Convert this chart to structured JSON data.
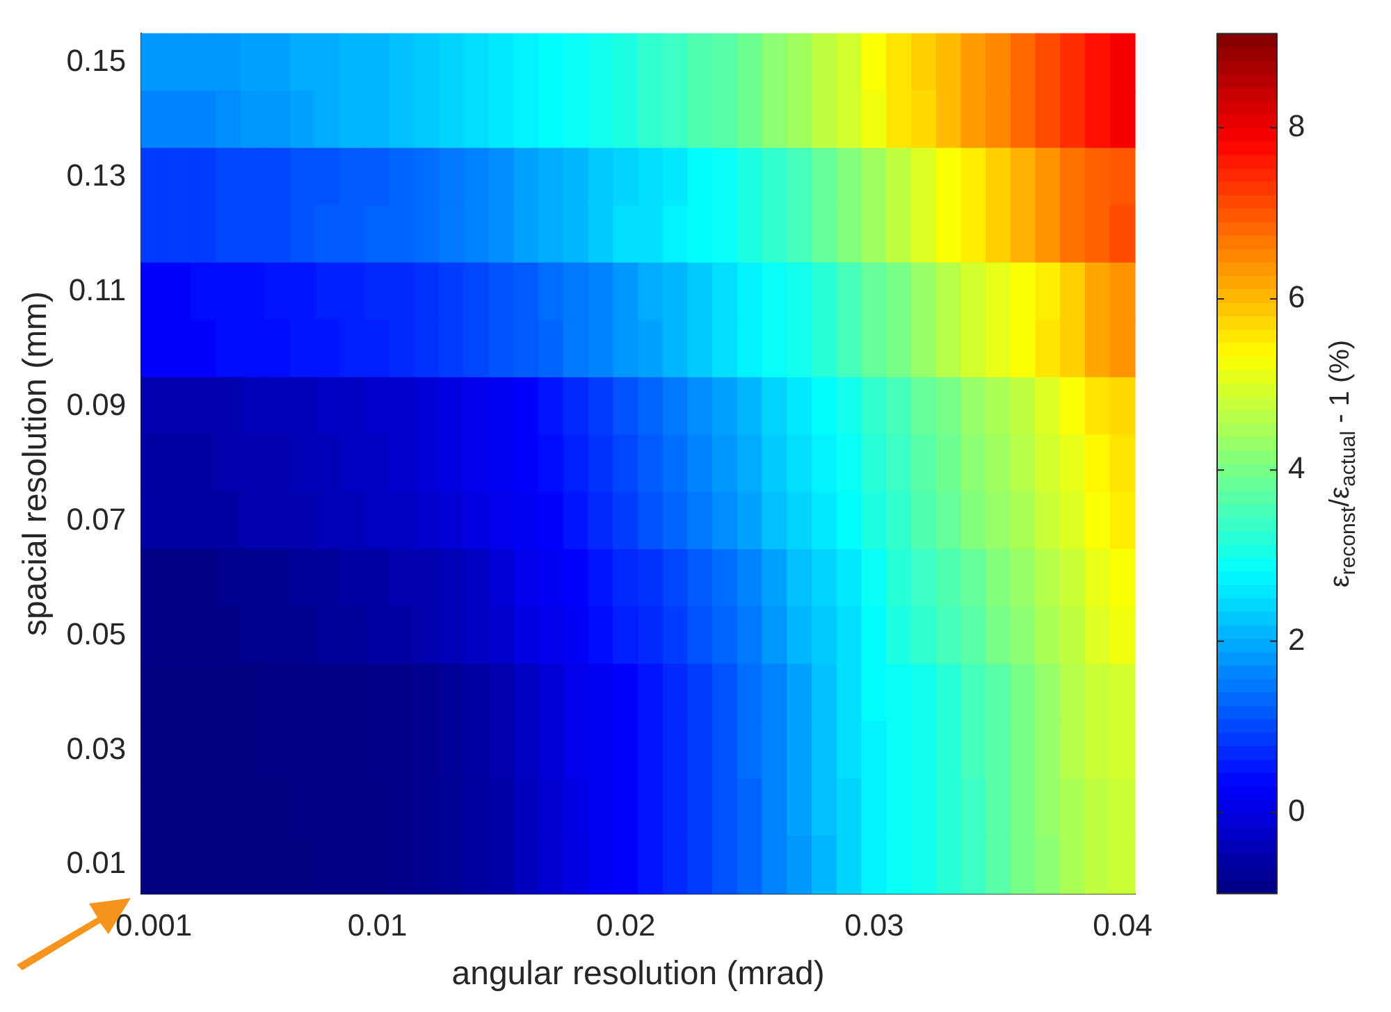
{
  "chart_data": {
    "type": "heatmap",
    "xlabel": "angular resolution (mrad)",
    "ylabel": "spacial resolution (mm)",
    "clabel": "ε$_{reconst}$/ε$_{actual}$ - 1 (%)",
    "categories": [
      "0.001",
      null,
      null,
      null,
      null,
      null,
      null,
      null,
      null,
      "0.01",
      null,
      null,
      null,
      null,
      null,
      null,
      null,
      null,
      null,
      "0.02",
      null,
      null,
      null,
      null,
      null,
      null,
      null,
      null,
      null,
      "0.03",
      null,
      null,
      null,
      null,
      null,
      null,
      null,
      null,
      null,
      "0.04"
    ],
    "y_categories": [
      "0.15",
      null,
      "0.13",
      null,
      "0.11",
      null,
      "0.09",
      null,
      "0.07",
      null,
      "0.05",
      null,
      "0.03",
      null,
      "0.01"
    ],
    "clim": [
      -0.95,
      9.1
    ],
    "cticks": [
      0,
      2,
      4,
      6,
      8
    ],
    "cells": [
      [
        1.8,
        1.8,
        1.8,
        1.8,
        1.9,
        1.9,
        2.0,
        2.0,
        2.1,
        2.1,
        2.2,
        2.3,
        2.4,
        2.5,
        2.6,
        2.7,
        2.8,
        2.9,
        3.0,
        3.1,
        3.3,
        3.4,
        3.6,
        3.7,
        3.9,
        4.2,
        4.4,
        4.7,
        4.9,
        5.3,
        5.6,
        5.8,
        6.0,
        6.3,
        6.5,
        6.8,
        7.1,
        7.4,
        7.7,
        7.9
      ],
      [
        1.6,
        1.6,
        1.6,
        1.7,
        1.8,
        1.8,
        1.9,
        2.0,
        2.1,
        2.1,
        2.2,
        2.3,
        2.4,
        2.5,
        2.6,
        2.7,
        2.8,
        2.9,
        3.0,
        3.1,
        3.3,
        3.4,
        3.6,
        3.7,
        3.9,
        4.2,
        4.4,
        4.7,
        4.9,
        5.2,
        5.6,
        5.7,
        6.0,
        6.3,
        6.5,
        6.8,
        7.1,
        7.4,
        7.7,
        7.9
      ],
      [
        0.9,
        0.9,
        0.9,
        1.0,
        1.0,
        1.0,
        1.1,
        1.1,
        1.2,
        1.2,
        1.3,
        1.4,
        1.5,
        1.6,
        1.7,
        1.9,
        2.0,
        2.1,
        2.3,
        2.4,
        2.5,
        2.6,
        2.8,
        2.9,
        3.1,
        3.3,
        3.5,
        3.8,
        4.1,
        4.4,
        4.7,
        5.0,
        5.3,
        5.5,
        5.8,
        6.1,
        6.4,
        6.7,
        6.9,
        7.0
      ],
      [
        0.9,
        0.9,
        0.9,
        1.0,
        1.0,
        1.0,
        1.1,
        1.2,
        1.2,
        1.3,
        1.3,
        1.4,
        1.5,
        1.6,
        1.7,
        1.9,
        2.0,
        2.1,
        2.3,
        2.5,
        2.5,
        2.7,
        2.8,
        2.9,
        3.1,
        3.3,
        3.5,
        3.8,
        4.1,
        4.4,
        4.7,
        5.0,
        5.3,
        5.5,
        5.8,
        6.1,
        6.4,
        6.7,
        6.9,
        7.1
      ],
      [
        0.3,
        0.3,
        0.4,
        0.4,
        0.4,
        0.5,
        0.5,
        0.6,
        0.6,
        0.7,
        0.7,
        0.8,
        0.9,
        1.0,
        1.1,
        1.2,
        1.4,
        1.5,
        1.6,
        1.8,
        2.0,
        2.1,
        2.3,
        2.5,
        2.7,
        2.9,
        3.0,
        3.2,
        3.5,
        3.8,
        4.0,
        4.3,
        4.6,
        4.9,
        5.1,
        5.3,
        5.5,
        5.8,
        6.2,
        6.4
      ],
      [
        0.3,
        0.3,
        0.3,
        0.4,
        0.4,
        0.4,
        0.5,
        0.5,
        0.6,
        0.6,
        0.7,
        0.8,
        0.9,
        1.0,
        1.1,
        1.2,
        1.3,
        1.5,
        1.6,
        1.8,
        1.9,
        2.1,
        2.3,
        2.5,
        2.7,
        2.9,
        3.0,
        3.2,
        3.5,
        3.8,
        4.0,
        4.3,
        4.6,
        4.9,
        5.1,
        5.3,
        5.6,
        5.8,
        6.2,
        6.4
      ],
      [
        -0.5,
        -0.5,
        -0.5,
        -0.5,
        -0.4,
        -0.4,
        -0.4,
        -0.3,
        -0.3,
        -0.2,
        -0.2,
        -0.1,
        0.0,
        0.1,
        0.2,
        0.3,
        0.5,
        0.7,
        0.9,
        1.1,
        1.3,
        1.5,
        1.7,
        1.9,
        2.1,
        2.4,
        2.6,
        2.8,
        3.0,
        3.3,
        3.5,
        3.8,
        4.0,
        4.3,
        4.5,
        4.7,
        5.0,
        5.3,
        5.6,
        5.7
      ],
      [
        -0.6,
        -0.6,
        -0.6,
        -0.5,
        -0.5,
        -0.5,
        -0.4,
        -0.4,
        -0.3,
        -0.3,
        -0.2,
        -0.1,
        0.0,
        0.1,
        0.2,
        0.3,
        0.4,
        0.6,
        0.8,
        1.0,
        1.2,
        1.4,
        1.6,
        1.8,
        2.0,
        2.3,
        2.5,
        2.7,
        2.9,
        3.2,
        3.4,
        3.7,
        3.9,
        4.2,
        4.4,
        4.6,
        4.9,
        5.1,
        5.4,
        5.6
      ],
      [
        -0.6,
        -0.6,
        -0.6,
        -0.6,
        -0.5,
        -0.5,
        -0.5,
        -0.4,
        -0.4,
        -0.3,
        -0.3,
        -0.2,
        -0.1,
        0.0,
        0.1,
        0.2,
        0.3,
        0.5,
        0.7,
        0.9,
        1.1,
        1.3,
        1.5,
        1.7,
        1.9,
        2.2,
        2.4,
        2.6,
        2.8,
        3.1,
        3.3,
        3.6,
        3.8,
        4.1,
        4.3,
        4.5,
        4.8,
        5.0,
        5.3,
        5.5
      ],
      [
        -0.9,
        -0.9,
        -0.9,
        -0.8,
        -0.8,
        -0.8,
        -0.7,
        -0.7,
        -0.6,
        -0.6,
        -0.5,
        -0.5,
        -0.4,
        -0.3,
        -0.1,
        0.1,
        0.2,
        0.3,
        0.5,
        0.7,
        0.8,
        1.0,
        1.2,
        1.4,
        1.6,
        1.9,
        2.2,
        2.4,
        2.6,
        2.9,
        3.2,
        3.4,
        3.6,
        3.8,
        4.1,
        4.3,
        4.6,
        4.8,
        5.1,
        5.3
      ],
      [
        -0.9,
        -0.9,
        -0.9,
        -0.9,
        -0.8,
        -0.8,
        -0.8,
        -0.7,
        -0.7,
        -0.6,
        -0.6,
        -0.5,
        -0.4,
        -0.3,
        -0.2,
        0.0,
        0.1,
        0.2,
        0.4,
        0.6,
        0.7,
        0.9,
        1.1,
        1.3,
        1.5,
        1.8,
        2.1,
        2.3,
        2.5,
        2.8,
        3.1,
        3.3,
        3.5,
        3.7,
        4.0,
        4.2,
        4.5,
        4.7,
        5.0,
        5.2
      ],
      [
        -0.95,
        -0.95,
        -0.95,
        -0.95,
        -0.95,
        -0.9,
        -0.9,
        -0.9,
        -0.9,
        -0.85,
        -0.85,
        -0.8,
        -0.7,
        -0.6,
        -0.5,
        -0.3,
        -0.1,
        0.1,
        0.2,
        0.3,
        0.5,
        0.7,
        0.9,
        1.1,
        1.4,
        1.6,
        1.9,
        2.2,
        2.5,
        2.8,
        2.9,
        3.0,
        3.2,
        3.5,
        3.7,
        4.0,
        4.3,
        4.6,
        4.8,
        4.9
      ],
      [
        -0.95,
        -0.95,
        -0.95,
        -0.95,
        -0.95,
        -0.9,
        -0.9,
        -0.9,
        -0.9,
        -0.85,
        -0.85,
        -0.8,
        -0.7,
        -0.6,
        -0.5,
        -0.3,
        -0.1,
        0.1,
        0.2,
        0.3,
        0.5,
        0.7,
        0.9,
        1.1,
        1.4,
        1.6,
        1.9,
        2.2,
        2.5,
        2.7,
        2.9,
        3.0,
        3.2,
        3.5,
        3.7,
        4.0,
        4.3,
        4.6,
        4.8,
        4.9
      ],
      [
        -0.95,
        -0.95,
        -0.95,
        -0.95,
        -0.95,
        -0.95,
        -0.9,
        -0.9,
        -0.9,
        -0.9,
        -0.85,
        -0.8,
        -0.75,
        -0.65,
        -0.55,
        -0.35,
        -0.15,
        0.05,
        0.2,
        0.3,
        0.5,
        0.7,
        0.9,
        1.1,
        1.3,
        1.6,
        1.9,
        2.2,
        2.4,
        2.7,
        2.9,
        3.0,
        3.2,
        3.4,
        3.7,
        4.0,
        4.3,
        4.5,
        4.7,
        4.8
      ],
      [
        -0.95,
        -0.95,
        -0.95,
        -0.95,
        -0.95,
        -0.95,
        -0.95,
        -0.9,
        -0.9,
        -0.9,
        -0.85,
        -0.8,
        -0.75,
        -0.65,
        -0.55,
        -0.35,
        -0.15,
        0.0,
        0.2,
        0.3,
        0.5,
        0.7,
        0.9,
        1.1,
        1.3,
        1.6,
        1.8,
        2.1,
        2.4,
        2.7,
        2.9,
        3.0,
        3.2,
        3.4,
        3.7,
        4.0,
        4.2,
        4.5,
        4.7,
        4.8
      ]
    ]
  }
}
